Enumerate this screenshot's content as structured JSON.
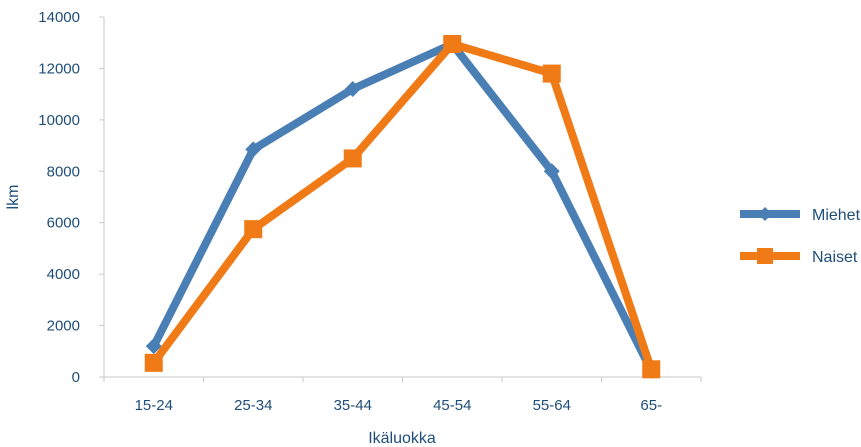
{
  "chart_data": {
    "type": "line",
    "categories": [
      "15-24",
      "25-34",
      "35-44",
      "45-54",
      "55-64",
      "65-"
    ],
    "series": [
      {
        "name": "Miehet",
        "values": [
          1200,
          8850,
          11200,
          12950,
          8000,
          250
        ],
        "color": "#4a7fb5",
        "marker": "diamond"
      },
      {
        "name": "Naiset",
        "values": [
          550,
          5750,
          8500,
          12950,
          11800,
          300
        ],
        "color": "#f07a16",
        "marker": "square"
      }
    ],
    "ylim": [
      0,
      14000
    ],
    "yticks": [
      0,
      2000,
      4000,
      6000,
      8000,
      10000,
      12000,
      14000
    ],
    "xlabel": "Ikäluokka",
    "ylabel": "lkm",
    "grid": false,
    "legend_position": "right"
  }
}
